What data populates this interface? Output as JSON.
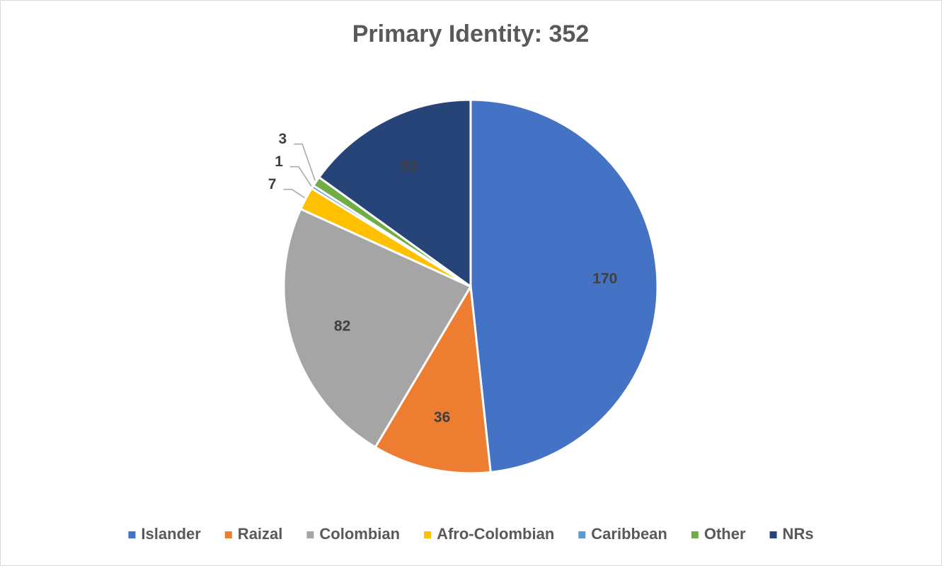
{
  "chart_data": {
    "type": "pie",
    "title": "Primary Identity: 352",
    "categories": [
      "Islander",
      "Raizal",
      "Colombian",
      "Afro-Colombian",
      "Caribbean",
      "Other",
      "NRs"
    ],
    "values": [
      170,
      36,
      82,
      7,
      1,
      3,
      53
    ],
    "colors": [
      "#4472c4",
      "#ed7d31",
      "#a5a5a5",
      "#ffc000",
      "#5b9bd5",
      "#70ad47",
      "#264478"
    ],
    "legend": "bottom"
  }
}
